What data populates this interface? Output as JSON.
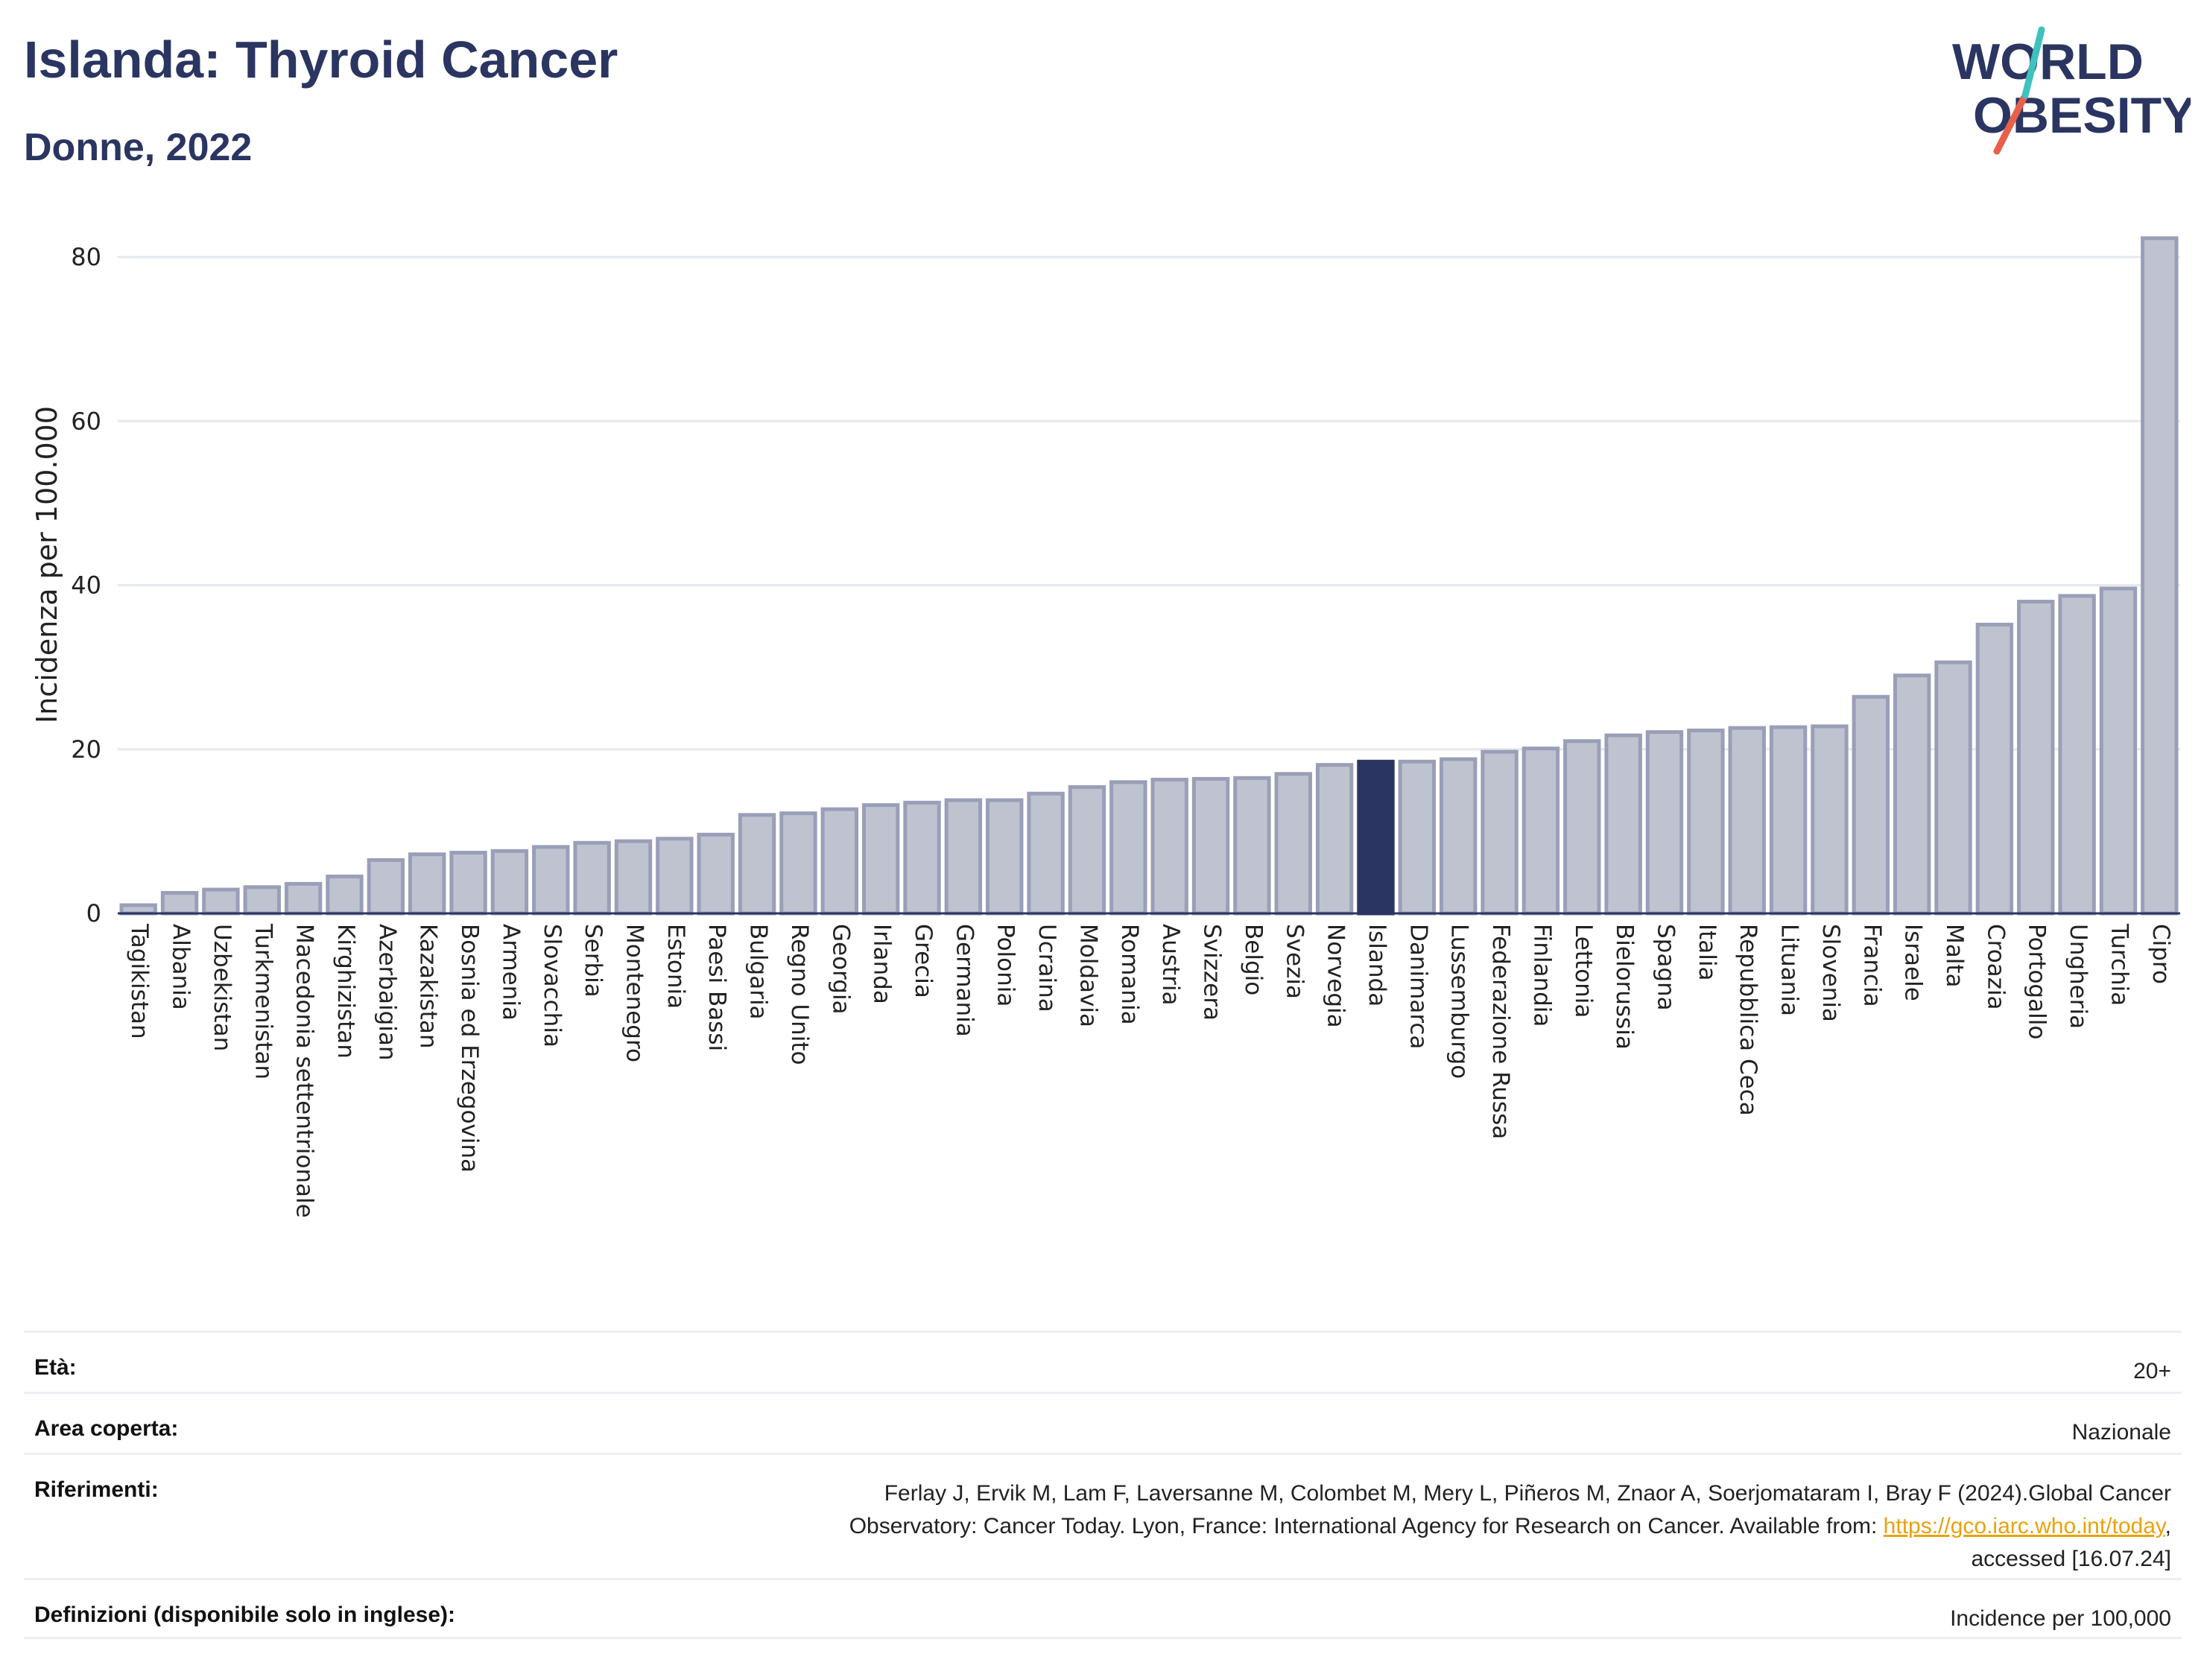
{
  "header": {
    "title": "Islanda: Thyroid Cancer",
    "subtitle": "Donne, 2022"
  },
  "logo": {
    "line1": "WORLD",
    "line2": "OBESITY",
    "accent_colors": [
      "#e8604c",
      "#3fc1c0"
    ]
  },
  "colors": {
    "bar_fill": "#bfc3d0",
    "bar_stroke": "#9a9fb8",
    "highlight": "#2b3561",
    "grid": "#e6e8ee"
  },
  "chart_data": {
    "type": "bar",
    "title": "Islanda: Thyroid Cancer",
    "subtitle": "Donne, 2022",
    "ylabel": "Incidenza per 100.000",
    "xlabel": "",
    "ylim": [
      0,
      85
    ],
    "yticks": [
      0,
      20,
      40,
      60,
      80
    ],
    "grid": true,
    "highlight": "Islanda",
    "categories": [
      "Tagikistan",
      "Albania",
      "Uzbekistan",
      "Turkmenistan",
      "Macedonia settentrionale",
      "Kirghizistan",
      "Azerbaigian",
      "Kazakistan",
      "Bosnia ed Erzegovina",
      "Armenia",
      "Slovacchia",
      "Serbia",
      "Montenegro",
      "Estonia",
      "Paesi Bassi",
      "Bulgaria",
      "Regno Unito",
      "Georgia",
      "Irlanda",
      "Grecia",
      "Germania",
      "Polonia",
      "Ucraina",
      "Moldavia",
      "Romania",
      "Austria",
      "Svizzera",
      "Belgio",
      "Svezia",
      "Norvegia",
      "Islanda",
      "Danimarca",
      "Lussemburgo",
      "Federazione Russa",
      "Finlandia",
      "Lettonia",
      "Bielorussia",
      "Spagna",
      "Italia",
      "Repubblica Ceca",
      "Lituania",
      "Slovenia",
      "Francia",
      "Israele",
      "Malta",
      "Croazia",
      "Portogallo",
      "Ungheria",
      "Turchia",
      "Cipro"
    ],
    "values": [
      1.0,
      2.5,
      2.9,
      3.2,
      3.6,
      4.5,
      6.5,
      7.2,
      7.4,
      7.6,
      8.1,
      8.6,
      8.8,
      9.1,
      9.6,
      12.0,
      12.2,
      12.7,
      13.2,
      13.5,
      13.8,
      13.8,
      14.6,
      15.4,
      16.0,
      16.3,
      16.4,
      16.5,
      17.0,
      18.1,
      18.5,
      18.5,
      18.8,
      19.7,
      20.1,
      21.0,
      21.7,
      22.1,
      22.3,
      22.6,
      22.7,
      22.8,
      26.4,
      29.0,
      30.6,
      35.2,
      38.0,
      38.7,
      39.6,
      82.3
    ]
  },
  "info": {
    "rows": [
      {
        "label": "Età:",
        "value": "20+"
      },
      {
        "label": "Area coperta:",
        "value": "Nazionale"
      },
      {
        "label": "Riferimenti:",
        "value_lines": [
          "Ferlay J, Ervik M, Lam F, Laversanne M, Colombet M, Mery L, Piñeros M, Znaor A, Soerjomataram I, Bray F (2024).Global Cancer",
          "Observatory: Cancer Today. Lyon, France: International Agency for Research on Cancer. Available from: "
        ],
        "link": "https://gco.iarc.who.int/today",
        "after_link": ",",
        "last_line": "accessed [16.07.24]"
      },
      {
        "label": "Definizioni (disponibile solo in inglese):",
        "value": "Incidence per 100,000"
      }
    ]
  }
}
